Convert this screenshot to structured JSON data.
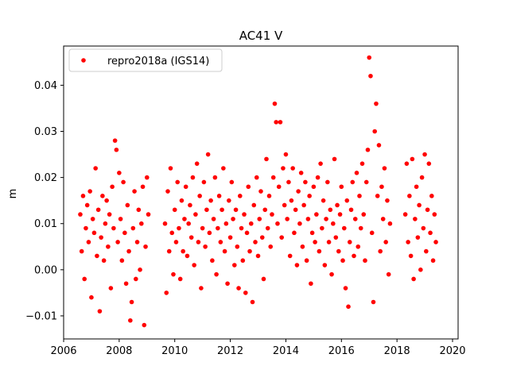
{
  "chart_data": {
    "type": "scatter",
    "title": "AC41 V",
    "xlabel": "",
    "ylabel": "m",
    "xlim": [
      2006.0,
      2020.2
    ],
    "ylim": [
      -0.015,
      0.0485
    ],
    "x_ticks": [
      {
        "value": 2006,
        "label": "2006"
      },
      {
        "value": 2008,
        "label": "2008"
      },
      {
        "value": 2010,
        "label": "2010"
      },
      {
        "value": 2012,
        "label": "2012"
      },
      {
        "value": 2014,
        "label": "2014"
      },
      {
        "value": 2016,
        "label": "2016"
      },
      {
        "value": 2018,
        "label": "2018"
      },
      {
        "value": 2020,
        "label": "2020"
      }
    ],
    "y_ticks": [
      {
        "value": -0.01,
        "label": "−0.01"
      },
      {
        "value": 0.0,
        "label": "0.00"
      },
      {
        "value": 0.01,
        "label": "0.01"
      },
      {
        "value": 0.02,
        "label": "0.02"
      },
      {
        "value": 0.03,
        "label": "0.03"
      },
      {
        "value": 0.04,
        "label": "0.04"
      }
    ],
    "grid": false,
    "legend_position": "top-left",
    "series": [
      {
        "name": "repro2018a (IGS14)",
        "color": "#ff0000",
        "marker": "circle",
        "points": [
          [
            2006.6,
            0.012
          ],
          [
            2006.65,
            0.004
          ],
          [
            2006.7,
            0.016
          ],
          [
            2006.75,
            -0.002
          ],
          [
            2006.8,
            0.009
          ],
          [
            2006.85,
            0.014
          ],
          [
            2006.9,
            0.006
          ],
          [
            2006.95,
            0.017
          ],
          [
            2007.0,
            -0.006
          ],
          [
            2007.05,
            0.011
          ],
          [
            2007.1,
            0.008
          ],
          [
            2007.15,
            0.022
          ],
          [
            2007.2,
            0.003
          ],
          [
            2007.25,
            0.013
          ],
          [
            2007.3,
            -0.009
          ],
          [
            2007.35,
            0.007
          ],
          [
            2007.4,
            0.016
          ],
          [
            2007.45,
            0.002
          ],
          [
            2007.5,
            0.01
          ],
          [
            2007.55,
            0.015
          ],
          [
            2007.6,
            0.005
          ],
          [
            2007.65,
            0.012
          ],
          [
            2007.7,
            -0.004
          ],
          [
            2007.75,
            0.018
          ],
          [
            2007.8,
            0.009
          ],
          [
            2007.85,
            0.028
          ],
          [
            2007.9,
            0.026
          ],
          [
            2007.95,
            0.006
          ],
          [
            2008.0,
            0.021
          ],
          [
            2008.05,
            0.011
          ],
          [
            2008.1,
            0.002
          ],
          [
            2008.15,
            0.019
          ],
          [
            2008.2,
            0.008
          ],
          [
            2008.25,
            -0.003
          ],
          [
            2008.3,
            0.014
          ],
          [
            2008.35,
            0.004
          ],
          [
            2008.4,
            -0.011
          ],
          [
            2008.45,
            -0.007
          ],
          [
            2008.5,
            0.009
          ],
          [
            2008.55,
            0.017
          ],
          [
            2008.6,
            -0.002
          ],
          [
            2008.65,
            0.006
          ],
          [
            2008.7,
            0.013
          ],
          [
            2008.75,
            0.0
          ],
          [
            2008.8,
            0.01
          ],
          [
            2008.85,
            0.018
          ],
          [
            2008.9,
            -0.012
          ],
          [
            2008.95,
            0.005
          ],
          [
            2009.0,
            0.02
          ],
          [
            2009.05,
            0.012
          ],
          [
            2009.65,
            0.01
          ],
          [
            2009.7,
            -0.005
          ],
          [
            2009.75,
            0.017
          ],
          [
            2009.8,
            0.004
          ],
          [
            2009.85,
            0.022
          ],
          [
            2009.9,
            0.008
          ],
          [
            2009.95,
            -0.001
          ],
          [
            2010.0,
            0.013
          ],
          [
            2010.05,
            0.006
          ],
          [
            2010.1,
            0.019
          ],
          [
            2010.15,
            0.009
          ],
          [
            2010.2,
            -0.002
          ],
          [
            2010.25,
            0.015
          ],
          [
            2010.3,
            0.004
          ],
          [
            2010.35,
            0.011
          ],
          [
            2010.4,
            0.018
          ],
          [
            2010.45,
            0.003
          ],
          [
            2010.5,
            0.01
          ],
          [
            2010.55,
            0.014
          ],
          [
            2010.6,
            0.007
          ],
          [
            2010.65,
            0.02
          ],
          [
            2010.7,
            0.001
          ],
          [
            2010.75,
            0.012
          ],
          [
            2010.8,
            0.023
          ],
          [
            2010.85,
            0.006
          ],
          [
            2010.9,
            0.016
          ],
          [
            2010.95,
            -0.004
          ],
          [
            2011.0,
            0.009
          ],
          [
            2011.05,
            0.019
          ],
          [
            2011.1,
            0.005
          ],
          [
            2011.15,
            0.013
          ],
          [
            2011.2,
            0.025
          ],
          [
            2011.25,
            0.008
          ],
          [
            2011.3,
            0.015
          ],
          [
            2011.35,
            0.002
          ],
          [
            2011.4,
            0.011
          ],
          [
            2011.45,
            0.02
          ],
          [
            2011.5,
            -0.001
          ],
          [
            2011.55,
            0.009
          ],
          [
            2011.6,
            0.016
          ],
          [
            2011.65,
            0.006
          ],
          [
            2011.7,
            0.013
          ],
          [
            2011.75,
            0.022
          ],
          [
            2011.8,
            0.004
          ],
          [
            2011.85,
            0.01
          ],
          [
            2011.9,
            -0.003
          ],
          [
            2011.95,
            0.015
          ],
          [
            2012.0,
            0.007
          ],
          [
            2012.05,
            0.019
          ],
          [
            2012.1,
            0.011
          ],
          [
            2012.15,
            0.001
          ],
          [
            2012.2,
            0.013
          ],
          [
            2012.25,
            0.005
          ],
          [
            2012.3,
            -0.004
          ],
          [
            2012.35,
            0.016
          ],
          [
            2012.4,
            0.009
          ],
          [
            2012.45,
            0.002
          ],
          [
            2012.5,
            0.012
          ],
          [
            2012.55,
            -0.005
          ],
          [
            2012.6,
            0.008
          ],
          [
            2012.65,
            0.018
          ],
          [
            2012.7,
            0.004
          ],
          [
            2012.75,
            0.01
          ],
          [
            2012.8,
            -0.007
          ],
          [
            2012.85,
            0.014
          ],
          [
            2012.9,
            0.006
          ],
          [
            2012.95,
            0.02
          ],
          [
            2013.0,
            0.003
          ],
          [
            2013.05,
            0.011
          ],
          [
            2013.1,
            0.017
          ],
          [
            2013.15,
            0.007
          ],
          [
            2013.2,
            -0.002
          ],
          [
            2013.25,
            0.013
          ],
          [
            2013.3,
            0.024
          ],
          [
            2013.35,
            0.009
          ],
          [
            2013.4,
            0.016
          ],
          [
            2013.45,
            0.005
          ],
          [
            2013.5,
            0.012
          ],
          [
            2013.55,
            0.02
          ],
          [
            2013.6,
            0.036
          ],
          [
            2013.65,
            0.032
          ],
          [
            2013.7,
            0.01
          ],
          [
            2013.75,
            0.018
          ],
          [
            2013.8,
            0.032
          ],
          [
            2013.85,
            0.007
          ],
          [
            2013.9,
            0.022
          ],
          [
            2013.95,
            0.014
          ],
          [
            2014.0,
            0.025
          ],
          [
            2014.05,
            0.011
          ],
          [
            2014.1,
            0.019
          ],
          [
            2014.15,
            0.003
          ],
          [
            2014.2,
            0.015
          ],
          [
            2014.25,
            0.022
          ],
          [
            2014.3,
            0.008
          ],
          [
            2014.35,
            0.013
          ],
          [
            2014.4,
            0.001
          ],
          [
            2014.45,
            0.017
          ],
          [
            2014.5,
            0.01
          ],
          [
            2014.55,
            0.021
          ],
          [
            2014.6,
            0.005
          ],
          [
            2014.65,
            0.014
          ],
          [
            2014.7,
            0.019
          ],
          [
            2014.75,
            0.002
          ],
          [
            2014.8,
            0.011
          ],
          [
            2014.85,
            0.016
          ],
          [
            2014.9,
            -0.003
          ],
          [
            2014.95,
            0.008
          ],
          [
            2015.0,
            0.018
          ],
          [
            2015.05,
            0.006
          ],
          [
            2015.1,
            0.012
          ],
          [
            2015.15,
            0.02
          ],
          [
            2015.2,
            0.004
          ],
          [
            2015.25,
            0.023
          ],
          [
            2015.3,
            0.009
          ],
          [
            2015.35,
            0.015
          ],
          [
            2015.4,
            0.001
          ],
          [
            2015.45,
            0.011
          ],
          [
            2015.5,
            0.019
          ],
          [
            2015.55,
            0.006
          ],
          [
            2015.6,
            0.013
          ],
          [
            2015.65,
            -0.001
          ],
          [
            2015.7,
            0.01
          ],
          [
            2015.75,
            0.024
          ],
          [
            2015.8,
            0.007
          ],
          [
            2015.85,
            0.014
          ],
          [
            2015.9,
            0.004
          ],
          [
            2015.95,
            0.012
          ],
          [
            2016.0,
            0.018
          ],
          [
            2016.05,
            0.002
          ],
          [
            2016.1,
            0.009
          ],
          [
            2016.15,
            -0.004
          ],
          [
            2016.2,
            0.015
          ],
          [
            2016.25,
            -0.008
          ],
          [
            2016.3,
            0.006
          ],
          [
            2016.35,
            0.013
          ],
          [
            2016.4,
            0.019
          ],
          [
            2016.45,
            0.003
          ],
          [
            2016.5,
            0.011
          ],
          [
            2016.55,
            0.021
          ],
          [
            2016.6,
            0.005
          ],
          [
            2016.65,
            0.016
          ],
          [
            2016.7,
            0.009
          ],
          [
            2016.75,
            0.023
          ],
          [
            2016.8,
            0.012
          ],
          [
            2016.85,
            0.002
          ],
          [
            2016.9,
            0.019
          ],
          [
            2016.95,
            0.026
          ],
          [
            2017.0,
            0.046
          ],
          [
            2017.05,
            0.042
          ],
          [
            2017.1,
            0.008
          ],
          [
            2017.15,
            -0.007
          ],
          [
            2017.2,
            0.03
          ],
          [
            2017.25,
            0.036
          ],
          [
            2017.3,
            0.016
          ],
          [
            2017.35,
            0.027
          ],
          [
            2017.4,
            0.004
          ],
          [
            2017.45,
            0.018
          ],
          [
            2017.5,
            0.011
          ],
          [
            2017.55,
            0.022
          ],
          [
            2017.6,
            0.006
          ],
          [
            2017.65,
            0.015
          ],
          [
            2017.7,
            -0.001
          ],
          [
            2017.75,
            0.01
          ],
          [
            2018.3,
            0.012
          ],
          [
            2018.35,
            0.023
          ],
          [
            2018.4,
            0.006
          ],
          [
            2018.45,
            0.016
          ],
          [
            2018.5,
            0.003
          ],
          [
            2018.55,
            0.024
          ],
          [
            2018.6,
            -0.002
          ],
          [
            2018.65,
            0.011
          ],
          [
            2018.7,
            0.018
          ],
          [
            2018.75,
            0.007
          ],
          [
            2018.8,
            0.014
          ],
          [
            2018.85,
            0.0
          ],
          [
            2018.9,
            0.02
          ],
          [
            2018.95,
            0.009
          ],
          [
            2019.0,
            0.025
          ],
          [
            2019.05,
            0.004
          ],
          [
            2019.1,
            0.013
          ],
          [
            2019.15,
            0.023
          ],
          [
            2019.2,
            0.008
          ],
          [
            2019.25,
            0.016
          ],
          [
            2019.3,
            0.002
          ],
          [
            2019.35,
            0.012
          ],
          [
            2019.4,
            0.006
          ]
        ]
      }
    ]
  }
}
